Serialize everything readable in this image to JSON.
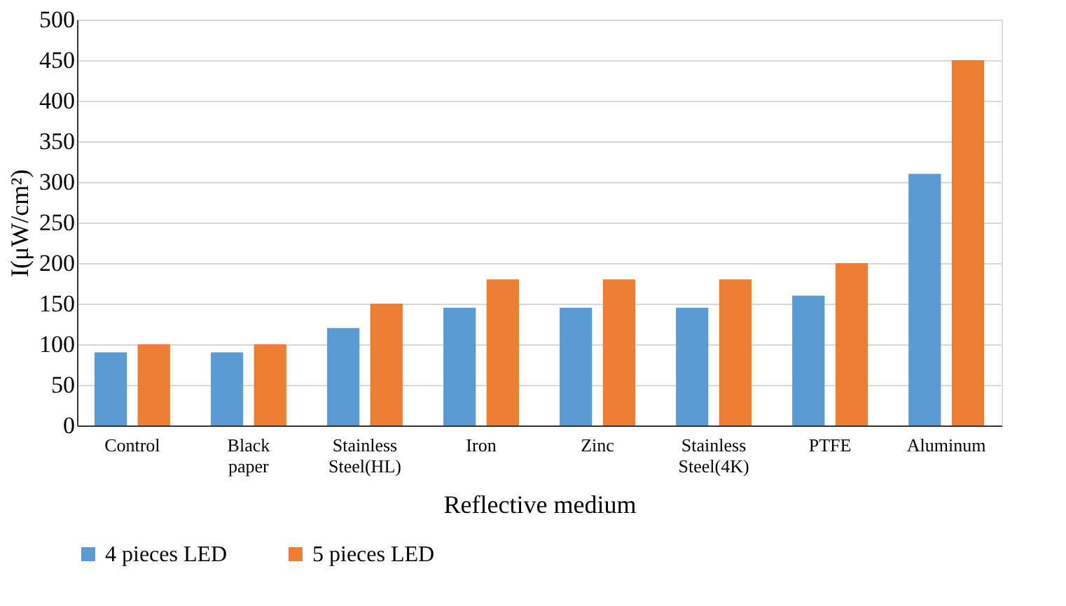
{
  "chart_data": {
    "type": "bar",
    "xlabel": "Reflective medium",
    "ylabel": "I(μW/cm²)",
    "categories": [
      "Control",
      "Black paper",
      "Stainless Steel(HL)",
      "Iron",
      "Zinc",
      "Stainless Steel(4K)",
      "PTFE",
      "Aluminum"
    ],
    "series": [
      {
        "name": "4 pieces LED",
        "color": "#5b9bd5",
        "values": [
          90,
          90,
          120,
          145,
          145,
          145,
          160,
          310
        ]
      },
      {
        "name": "5 pieces LED",
        "color": "#ed7d31",
        "values": [
          100,
          100,
          150,
          180,
          180,
          180,
          200,
          450
        ]
      }
    ],
    "ylim": [
      0,
      500
    ],
    "yticks": [
      0,
      50,
      100,
      150,
      200,
      250,
      300,
      350,
      400,
      450,
      500
    ],
    "grid": "y",
    "legend": "bottom"
  }
}
